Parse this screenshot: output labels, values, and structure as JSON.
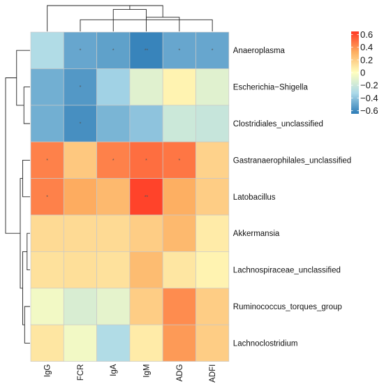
{
  "chart_data": {
    "type": "heatmap",
    "title": "",
    "xlabel": "",
    "ylabel": "",
    "rows": [
      "Anaeroplasma",
      "Escherichia−Shigella",
      "Clostridiales_unclassified",
      "Gastranaerophilales_unclassified",
      "Latobacillus",
      "Akkermansia",
      "Lachnospiraceae_unclassified",
      "Ruminococcus_torques_group",
      "Lachnoclostridium"
    ],
    "columns": [
      "IgG",
      "FCR",
      "IgA",
      "IgM",
      "ADG",
      "ADFI"
    ],
    "values": [
      [
        -0.3,
        -0.5,
        -0.52,
        -0.62,
        -0.5,
        -0.5
      ],
      [
        -0.47,
        -0.55,
        -0.35,
        -0.12,
        0.05,
        -0.12
      ],
      [
        -0.47,
        -0.58,
        -0.45,
        -0.4,
        -0.2,
        -0.22
      ],
      [
        0.45,
        0.22,
        0.45,
        0.5,
        0.48,
        0.18
      ],
      [
        0.45,
        0.33,
        0.28,
        0.62,
        0.32,
        0.2
      ],
      [
        0.15,
        0.15,
        0.15,
        0.2,
        0.28,
        0.08
      ],
      [
        0.12,
        0.13,
        0.12,
        0.27,
        0.1,
        0.05
      ],
      [
        -0.05,
        -0.15,
        -0.1,
        0.2,
        0.42,
        0.2
      ],
      [
        0.1,
        -0.05,
        -0.3,
        0.08,
        0.38,
        0.2
      ]
    ],
    "significance": [
      [
        "",
        "*",
        "*",
        "**",
        "*",
        "*"
      ],
      [
        "",
        "*",
        "",
        "",
        "",
        ""
      ],
      [
        "",
        "*",
        "",
        "",
        "",
        ""
      ],
      [
        "*",
        "",
        "*",
        "*",
        "*",
        ""
      ],
      [
        "*",
        "",
        "",
        "**",
        "",
        ""
      ],
      [
        "",
        "",
        "",
        "",
        "",
        ""
      ],
      [
        "",
        "",
        "",
        "",
        "",
        ""
      ],
      [
        "",
        "",
        "",
        "",
        "",
        ""
      ],
      [
        "",
        "",
        "",
        "",
        "",
        ""
      ]
    ],
    "colorbar": {
      "ticks": [
        0.6,
        0.4,
        0.2,
        0,
        -0.2,
        -0.4,
        -0.6
      ],
      "tick_labels": [
        "0.6",
        "0.4",
        "0.2",
        "0",
        "−0.2",
        "−0.4",
        "−0.6"
      ],
      "range": [
        -0.65,
        0.65
      ],
      "colors": [
        "#2c7bb6",
        "#abd9e9",
        "#ffffbf",
        "#fdae61",
        "#ff3824"
      ]
    },
    "col_dendrogram": [
      [
        1,
        5,
        0.45
      ],
      [
        2,
        6,
        0.85
      ],
      [
        0,
        7,
        1.0
      ],
      [
        3,
        4,
        0.55
      ],
      [
        8,
        9,
        1.0
      ]
    ],
    "row_dendrogram": [
      [
        1,
        2,
        0.25
      ],
      [
        0,
        9,
        0.55
      ],
      [
        3,
        4,
        0.3
      ],
      [
        5,
        6,
        0.12
      ],
      [
        7,
        8,
        0.22
      ],
      [
        12,
        13,
        0.3
      ],
      [
        11,
        14,
        0.4
      ],
      [
        10,
        15,
        1.0
      ]
    ]
  }
}
